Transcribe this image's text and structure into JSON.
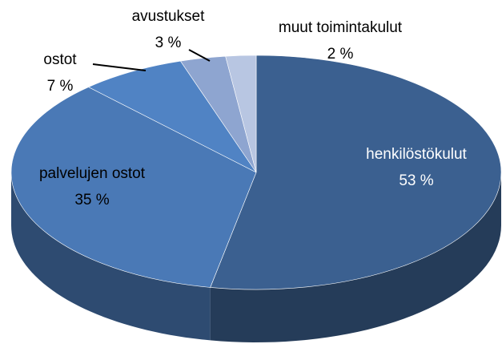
{
  "chart_data": {
    "type": "pie",
    "categories": [
      "henkilöstökulut",
      "palvelujen ostot",
      "ostot",
      "avustukset",
      "muut toimintakulut"
    ],
    "values": [
      53,
      35,
      7,
      3,
      2
    ],
    "value_labels": [
      "53 %",
      "35 %",
      "7 %",
      "3 %",
      "2 %"
    ],
    "colors": [
      "#3b6090",
      "#4a79b6",
      "#5083c4",
      "#8ea5d0",
      "#b8c6e2"
    ]
  }
}
